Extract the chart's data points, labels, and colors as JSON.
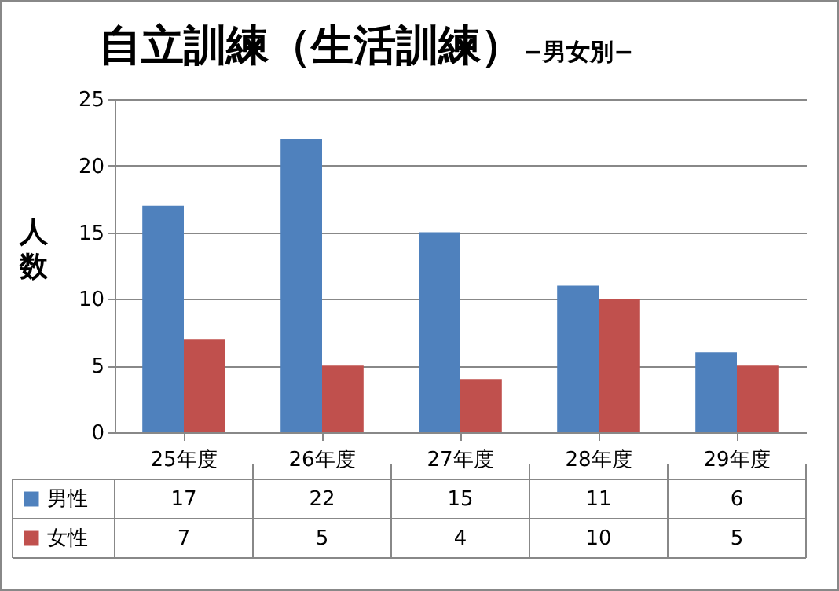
{
  "chart_data": {
    "type": "bar",
    "title": "自立訓練（生活訓練）",
    "subtitle": "−男女別−",
    "ylabel": "人数",
    "categories": [
      "25年度",
      "26年度",
      "27年度",
      "28年度",
      "29年度"
    ],
    "series": [
      {
        "name": "男性",
        "color": "#4f81bd",
        "values": [
          17,
          22,
          15,
          11,
          6
        ]
      },
      {
        "name": "女性",
        "color": "#c0504d",
        "values": [
          7,
          5,
          4,
          10,
          5
        ]
      }
    ],
    "ylim": [
      0,
      25
    ],
    "yticks": [
      0,
      5,
      10,
      15,
      20,
      25
    ],
    "grid": "y",
    "legend": "bottom",
    "data_labels": true
  }
}
